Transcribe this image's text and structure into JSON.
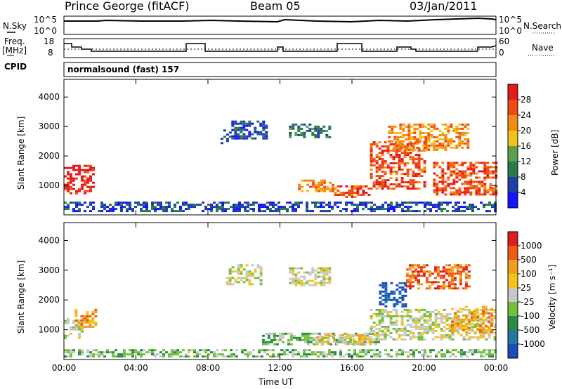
{
  "header": {
    "station": "Prince George (fitACF)",
    "beam": "Beam 05",
    "date": "03/Jan/2011"
  },
  "top_panels": {
    "nsky_label": "N.Sky",
    "nsky_ticks": [
      "10^5",
      "10^0"
    ],
    "nsearch_label": "N.Search",
    "nsearch_ticks": [
      "10^5",
      "10^0"
    ],
    "freq_label": "Freq.",
    "freq_unit": "[MHz]",
    "freq_ticks": [
      "18",
      "8"
    ],
    "nave_label": "Nave",
    "nave_ticks": [
      "60",
      "0"
    ],
    "cpid_label": "CPID",
    "cpid_text": "normalsound (fast) 157"
  },
  "colors": {
    "power_scale": [
      "#1414ff",
      "#1f3fa6",
      "#2a7a4a",
      "#5aa04e",
      "#f2c21b",
      "#f58a12",
      "#f04a10",
      "#e6191c"
    ],
    "velocity_scale": [
      "#1b4db8",
      "#2476a6",
      "#2a8a46",
      "#72bf3c",
      "#c8c8c8",
      "#f0c41a",
      "#f09f1a",
      "#f05b14",
      "#e01c1c"
    ]
  },
  "chart_data": [
    {
      "type": "heatmap",
      "name": "power",
      "ylabel": "Slant Range [km]",
      "xlabel": "Time UT",
      "y_ticks": [
        1000,
        2000,
        3000,
        4000
      ],
      "ylim": [
        0,
        4600
      ],
      "x_ticks": [
        "00:00",
        "04:00",
        "08:00",
        "12:00",
        "16:00",
        "20:00",
        "00:00"
      ],
      "xlim_hours": [
        0,
        24
      ],
      "colorbar_label": "Power [dB]",
      "colorbar_ticks": [
        "28",
        "24",
        "20",
        "16",
        "12",
        "8",
        "4"
      ],
      "regions": [
        {
          "t0": 0.0,
          "t1": 1.7,
          "r0": 700,
          "r1": 1700,
          "level": 7
        },
        {
          "t0": 0.0,
          "t1": 24.0,
          "r0": 100,
          "r1": 450,
          "level": 1
        },
        {
          "t0": 8.7,
          "t1": 9.2,
          "r0": 2400,
          "r1": 2900,
          "level": 1
        },
        {
          "t0": 9.3,
          "t1": 11.2,
          "r0": 2600,
          "r1": 3200,
          "level": 1
        },
        {
          "t0": 12.5,
          "t1": 14.8,
          "r0": 2600,
          "r1": 3100,
          "level": 2
        },
        {
          "t0": 13.0,
          "t1": 15.0,
          "r0": 800,
          "r1": 1200,
          "level": 5
        },
        {
          "t0": 15.0,
          "t1": 17.0,
          "r0": 600,
          "r1": 1000,
          "level": 6
        },
        {
          "t0": 17.0,
          "t1": 20.0,
          "r0": 900,
          "r1": 2500,
          "level": 6
        },
        {
          "t0": 18.0,
          "t1": 22.5,
          "r0": 2200,
          "r1": 3100,
          "level": 5
        },
        {
          "t0": 20.5,
          "t1": 24.0,
          "r0": 700,
          "r1": 1800,
          "level": 6
        }
      ]
    },
    {
      "type": "heatmap",
      "name": "velocity",
      "ylabel": "Slant Range [km]",
      "xlabel": "Time UT",
      "y_ticks": [
        1000,
        2000,
        3000,
        4000
      ],
      "ylim": [
        0,
        4600
      ],
      "x_ticks": [
        "00:00",
        "04:00",
        "08:00",
        "12:00",
        "16:00",
        "20:00",
        "00:00"
      ],
      "xlim_hours": [
        0,
        24
      ],
      "colorbar_label": "Velocity [m s⁻¹]",
      "colorbar_ticks": [
        "1000",
        "500",
        "100",
        "25",
        "-25",
        "-100",
        "-500",
        "-1000"
      ],
      "regions": [
        {
          "t0": 0.0,
          "t1": 1.0,
          "r0": 700,
          "r1": 1400,
          "level": 4
        },
        {
          "t0": 0.6,
          "t1": 1.7,
          "r0": 1100,
          "r1": 1700,
          "level": 6
        },
        {
          "t0": 0.0,
          "t1": 24.0,
          "r0": 100,
          "r1": 350,
          "level": 3
        },
        {
          "t0": 9.0,
          "t1": 11.0,
          "r0": 2500,
          "r1": 3200,
          "level": 4
        },
        {
          "t0": 12.5,
          "t1": 14.8,
          "r0": 2500,
          "r1": 3100,
          "level": 4
        },
        {
          "t0": 11.0,
          "t1": 17.5,
          "r0": 500,
          "r1": 900,
          "level": 3
        },
        {
          "t0": 14.0,
          "t1": 17.0,
          "r0": 500,
          "r1": 850,
          "level": 5
        },
        {
          "t0": 17.5,
          "t1": 19.0,
          "r0": 1800,
          "r1": 2600,
          "level": 0
        },
        {
          "t0": 19.0,
          "t1": 22.5,
          "r0": 2400,
          "r1": 3200,
          "level": 7
        },
        {
          "t0": 17.0,
          "t1": 24.0,
          "r0": 700,
          "r1": 1700,
          "level": 4
        },
        {
          "t0": 21.5,
          "t1": 23.8,
          "r0": 900,
          "r1": 1800,
          "level": 6
        }
      ]
    }
  ]
}
